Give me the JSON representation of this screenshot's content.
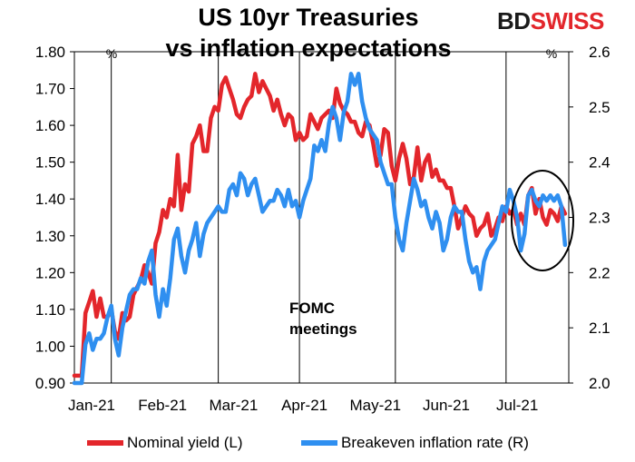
{
  "header": {
    "title_line1": "US 10yr Treasuries",
    "title_line2": "vs inflation expectations",
    "logo_bd": "BD",
    "logo_swiss": "SWISS"
  },
  "colors": {
    "nominal": "#e3262b",
    "breakeven": "#2f8ff0",
    "logo_red": "#e3262b"
  },
  "chart_data": {
    "type": "line",
    "title": "US 10yr Treasuries vs inflation expectations",
    "x_ticks": [
      "Jan-21",
      "Feb-21",
      "Mar-21",
      "Apr-21",
      "May-21",
      "Jun-21",
      "Jul-21"
    ],
    "x_range": [
      0,
      134
    ],
    "left_axis": {
      "unit": "%",
      "ylim": [
        0.9,
        1.8
      ],
      "ticks": [
        "0.90",
        "1.00",
        "1.10",
        "1.20",
        "1.30",
        "1.40",
        "1.50",
        "1.60",
        "1.70",
        "1.80"
      ]
    },
    "right_axis": {
      "unit": "%",
      "ylim": [
        2.0,
        2.6
      ],
      "ticks": [
        "2.0",
        "2.1",
        "2.2",
        "2.3",
        "2.4",
        "2.5",
        "2.6"
      ]
    },
    "fomc_meetings": [
      10,
      39,
      61,
      87,
      117
    ],
    "annotation": "FOMC\nmeetings",
    "series": [
      {
        "name": "Nominal yield (L)",
        "axis": "left",
        "x": [
          0,
          2,
          3,
          4,
          5,
          6,
          7,
          8,
          9,
          10,
          11,
          12,
          13,
          14,
          15,
          16,
          17,
          18,
          19,
          20,
          21,
          22,
          23,
          24,
          25,
          26,
          27,
          28,
          29,
          30,
          31,
          32,
          33,
          34,
          35,
          36,
          37,
          38,
          39,
          40,
          41,
          42,
          43,
          44,
          45,
          46,
          47,
          48,
          49,
          50,
          51,
          52,
          53,
          54,
          55,
          56,
          57,
          58,
          59,
          60,
          61,
          62,
          63,
          64,
          65,
          66,
          67,
          68,
          69,
          70,
          71,
          72,
          73,
          74,
          75,
          76,
          77,
          78,
          79,
          80,
          81,
          82,
          83,
          84,
          85,
          86,
          87,
          88,
          89,
          90,
          91,
          92,
          93,
          94,
          95,
          96,
          97,
          98,
          99,
          100,
          101,
          102,
          103,
          104,
          105,
          106,
          107,
          108,
          109,
          110,
          111,
          112,
          113,
          114,
          115,
          116,
          117,
          118,
          119,
          120,
          121,
          122,
          123,
          124,
          125,
          126,
          127,
          128,
          129,
          130,
          131,
          132,
          133
        ],
        "values": [
          0.92,
          0.92,
          1.09,
          1.12,
          1.15,
          1.08,
          1.13,
          1.08,
          1.08,
          1.1,
          1.04,
          1.02,
          1.09,
          1.07,
          1.08,
          1.14,
          1.16,
          1.18,
          1.22,
          1.2,
          1.17,
          1.28,
          1.31,
          1.37,
          1.35,
          1.4,
          1.38,
          1.52,
          1.37,
          1.44,
          1.42,
          1.55,
          1.57,
          1.6,
          1.53,
          1.53,
          1.62,
          1.65,
          1.64,
          1.71,
          1.73,
          1.7,
          1.67,
          1.63,
          1.62,
          1.65,
          1.67,
          1.68,
          1.74,
          1.69,
          1.72,
          1.7,
          1.68,
          1.64,
          1.67,
          1.63,
          1.6,
          1.63,
          1.62,
          1.56,
          1.58,
          1.56,
          1.57,
          1.63,
          1.61,
          1.59,
          1.62,
          1.63,
          1.64,
          1.62,
          1.7,
          1.66,
          1.64,
          1.63,
          1.61,
          1.61,
          1.58,
          1.57,
          1.61,
          1.6,
          1.55,
          1.49,
          1.52,
          1.59,
          1.58,
          1.49,
          1.45,
          1.51,
          1.55,
          1.51,
          1.44,
          1.46,
          1.54,
          1.45,
          1.5,
          1.52,
          1.46,
          1.48,
          1.45,
          1.45,
          1.43,
          1.43,
          1.38,
          1.32,
          1.35,
          1.38,
          1.36,
          1.35,
          1.3,
          1.32,
          1.33,
          1.36,
          1.3,
          1.32,
          1.35,
          1.34,
          1.38,
          1.36,
          1.37,
          1.33,
          1.36,
          1.33,
          1.41,
          1.43,
          1.36,
          1.4,
          1.35,
          1.33,
          1.37,
          1.36,
          1.34,
          1.38,
          1.36
        ],
        "color": "#e3262b"
      },
      {
        "name": "Breakeven inflation rate (R)",
        "axis": "right",
        "x": [
          0,
          2,
          3,
          4,
          5,
          6,
          7,
          8,
          9,
          10,
          11,
          12,
          13,
          14,
          15,
          16,
          17,
          18,
          19,
          20,
          21,
          22,
          23,
          24,
          25,
          26,
          27,
          28,
          29,
          30,
          31,
          32,
          33,
          34,
          35,
          36,
          37,
          38,
          39,
          40,
          41,
          42,
          43,
          44,
          45,
          46,
          47,
          48,
          49,
          50,
          51,
          52,
          53,
          54,
          55,
          56,
          57,
          58,
          59,
          60,
          61,
          62,
          63,
          64,
          65,
          66,
          67,
          68,
          69,
          70,
          71,
          72,
          73,
          74,
          75,
          76,
          77,
          78,
          79,
          80,
          81,
          82,
          83,
          84,
          85,
          86,
          87,
          88,
          89,
          90,
          91,
          92,
          93,
          94,
          95,
          96,
          97,
          98,
          99,
          100,
          101,
          102,
          103,
          104,
          105,
          106,
          107,
          108,
          109,
          110,
          111,
          112,
          113,
          114,
          115,
          116,
          117,
          118,
          119,
          120,
          121,
          122,
          123,
          124,
          125,
          126,
          127,
          128,
          129,
          130,
          131,
          132,
          133
        ],
        "values": [
          2.0,
          2.0,
          2.07,
          2.09,
          2.06,
          2.08,
          2.08,
          2.09,
          2.12,
          2.14,
          2.08,
          2.05,
          2.1,
          2.13,
          2.16,
          2.17,
          2.17,
          2.19,
          2.18,
          2.22,
          2.24,
          2.16,
          2.12,
          2.17,
          2.14,
          2.19,
          2.26,
          2.28,
          2.23,
          2.2,
          2.24,
          2.26,
          2.29,
          2.23,
          2.27,
          2.29,
          2.3,
          2.31,
          2.32,
          2.31,
          2.31,
          2.35,
          2.36,
          2.34,
          2.38,
          2.37,
          2.34,
          2.36,
          2.37,
          2.34,
          2.31,
          2.32,
          2.33,
          2.33,
          2.35,
          2.34,
          2.32,
          2.35,
          2.32,
          2.33,
          2.3,
          2.33,
          2.35,
          2.37,
          2.43,
          2.42,
          2.44,
          2.42,
          2.47,
          2.5,
          2.48,
          2.44,
          2.49,
          2.51,
          2.56,
          2.54,
          2.56,
          2.51,
          2.48,
          2.46,
          2.45,
          2.44,
          2.4,
          2.38,
          2.36,
          2.36,
          2.3,
          2.26,
          2.24,
          2.29,
          2.33,
          2.37,
          2.35,
          2.32,
          2.33,
          2.3,
          2.28,
          2.31,
          2.29,
          2.24,
          2.26,
          2.3,
          2.32,
          2.31,
          2.31,
          2.26,
          2.22,
          2.2,
          2.21,
          2.17,
          2.22,
          2.24,
          2.25,
          2.26,
          2.29,
          2.32,
          2.31,
          2.35,
          2.33,
          2.3,
          2.24,
          2.27,
          2.34,
          2.35,
          2.33,
          2.32,
          2.34,
          2.33,
          2.34,
          2.33,
          2.34,
          2.32,
          2.25
        ],
        "color": "#2f8ff0"
      }
    ],
    "legend": [
      "Nominal yield (L)",
      "Breakeven inflation rate (R)"
    ]
  }
}
